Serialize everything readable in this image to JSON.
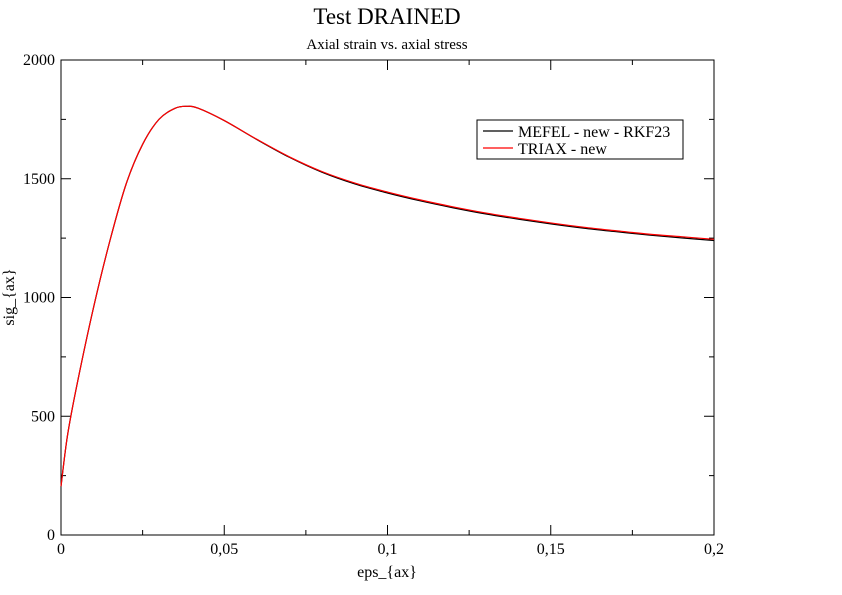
{
  "chart_data": {
    "type": "line",
    "title": "Test DRAINED",
    "subtitle": "Axial strain vs. axial stress",
    "xlabel": "eps_{ax}",
    "ylabel": "sig_{ax}",
    "xlim": [
      0,
      0.2
    ],
    "ylim": [
      0,
      2000
    ],
    "xticks": [
      0,
      0.05,
      0.1,
      0.15,
      0.2
    ],
    "xtick_labels": [
      "0",
      "0,05",
      "0,1",
      "0,15",
      "0,2"
    ],
    "yticks": [
      0,
      500,
      1000,
      1500,
      2000
    ],
    "ytick_labels": [
      "0",
      "500",
      "1000",
      "1500",
      "2000"
    ],
    "grid": false,
    "legend_position": "top-right",
    "series": [
      {
        "name": "MEFEL - new - RKF23",
        "color": "#000000",
        "x": [
          0,
          0.002,
          0.005,
          0.01,
          0.015,
          0.02,
          0.025,
          0.03,
          0.035,
          0.0385,
          0.042,
          0.05,
          0.06,
          0.07,
          0.08,
          0.09,
          0.1,
          0.11,
          0.12,
          0.13,
          0.14,
          0.15,
          0.16,
          0.17,
          0.18,
          0.19,
          0.2
        ],
        "y": [
          205,
          420,
          640,
          960,
          1240,
          1480,
          1645,
          1750,
          1797,
          1805,
          1797,
          1745,
          1665,
          1590,
          1527,
          1478,
          1440,
          1407,
          1378,
          1352,
          1330,
          1310,
          1292,
          1277,
          1263,
          1251,
          1240
        ]
      },
      {
        "name": "TRIAX - new",
        "color": "#ff0000",
        "x": [
          0,
          0.002,
          0.005,
          0.01,
          0.015,
          0.02,
          0.025,
          0.03,
          0.035,
          0.0385,
          0.042,
          0.05,
          0.06,
          0.07,
          0.08,
          0.09,
          0.1,
          0.11,
          0.12,
          0.13,
          0.14,
          0.15,
          0.16,
          0.17,
          0.18,
          0.19,
          0.2
        ],
        "y": [
          205,
          420,
          640,
          960,
          1240,
          1480,
          1645,
          1750,
          1797,
          1805,
          1797,
          1745,
          1666,
          1592,
          1530,
          1482,
          1444,
          1411,
          1382,
          1356,
          1334,
          1314,
          1296,
          1281,
          1267,
          1256,
          1245
        ]
      }
    ]
  }
}
